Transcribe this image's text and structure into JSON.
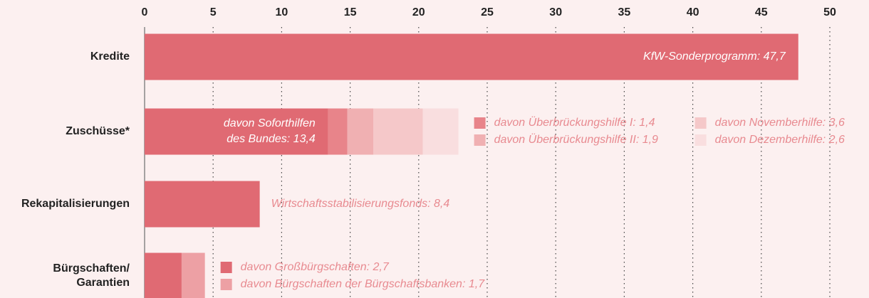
{
  "chart_data": {
    "type": "bar",
    "orientation": "horizontal",
    "stacked": true,
    "grid": true,
    "xlim": [
      0,
      50
    ],
    "xticks": [
      0,
      5,
      10,
      15,
      20,
      25,
      30,
      35,
      40,
      45,
      50
    ],
    "bars": [
      {
        "category": [
          "Kredite"
        ],
        "segments": [
          {
            "value": 47.7,
            "color": "#e06a73",
            "label_style": "inside-end",
            "label": [
              "KfW-Sonderprogramm: 47,7"
            ]
          }
        ]
      },
      {
        "category": [
          "Zuschüsse*"
        ],
        "segments": [
          {
            "value": 13.4,
            "color": "#e06a73",
            "label_style": "inside-end",
            "label": [
              "davon Soforthilfen",
              "des Bundes: 13,4"
            ]
          },
          {
            "value": 1.4,
            "color": "#e8848a",
            "label_style": "legend",
            "label": [
              "davon Überbrückungshilfe I: 1,4"
            ]
          },
          {
            "value": 1.9,
            "color": "#f0b0b2",
            "label_style": "legend",
            "label": [
              "davon Überbrückungshilfe II: 1,9"
            ]
          },
          {
            "value": 3.6,
            "color": "#f5c8c9",
            "label_style": "legend",
            "label": [
              "davon Novemberhilfe: 3,6"
            ]
          },
          {
            "value": 2.6,
            "color": "#f9dedf",
            "label_style": "legend",
            "label": [
              "davon Dezemberhilfe: 2,6"
            ]
          }
        ]
      },
      {
        "category": [
          "Rekapitalisierungen"
        ],
        "segments": [
          {
            "value": 8.4,
            "color": "#e06a73",
            "label_style": "outside",
            "label": [
              "Wirtschaftsstabilisierungsfonds: 8,4"
            ]
          }
        ]
      },
      {
        "category": [
          "Bürgschaften/",
          "Garantien"
        ],
        "segments": [
          {
            "value": 2.7,
            "color": "#e06a73",
            "label_style": "legend",
            "label": [
              "davon Großbürgschaften: 2,7"
            ]
          },
          {
            "value": 1.7,
            "color": "#eda0a4",
            "label_style": "legend",
            "label": [
              "davon Bürgschaften der Bürgschaftsbanken: 1,7"
            ]
          }
        ]
      }
    ]
  }
}
